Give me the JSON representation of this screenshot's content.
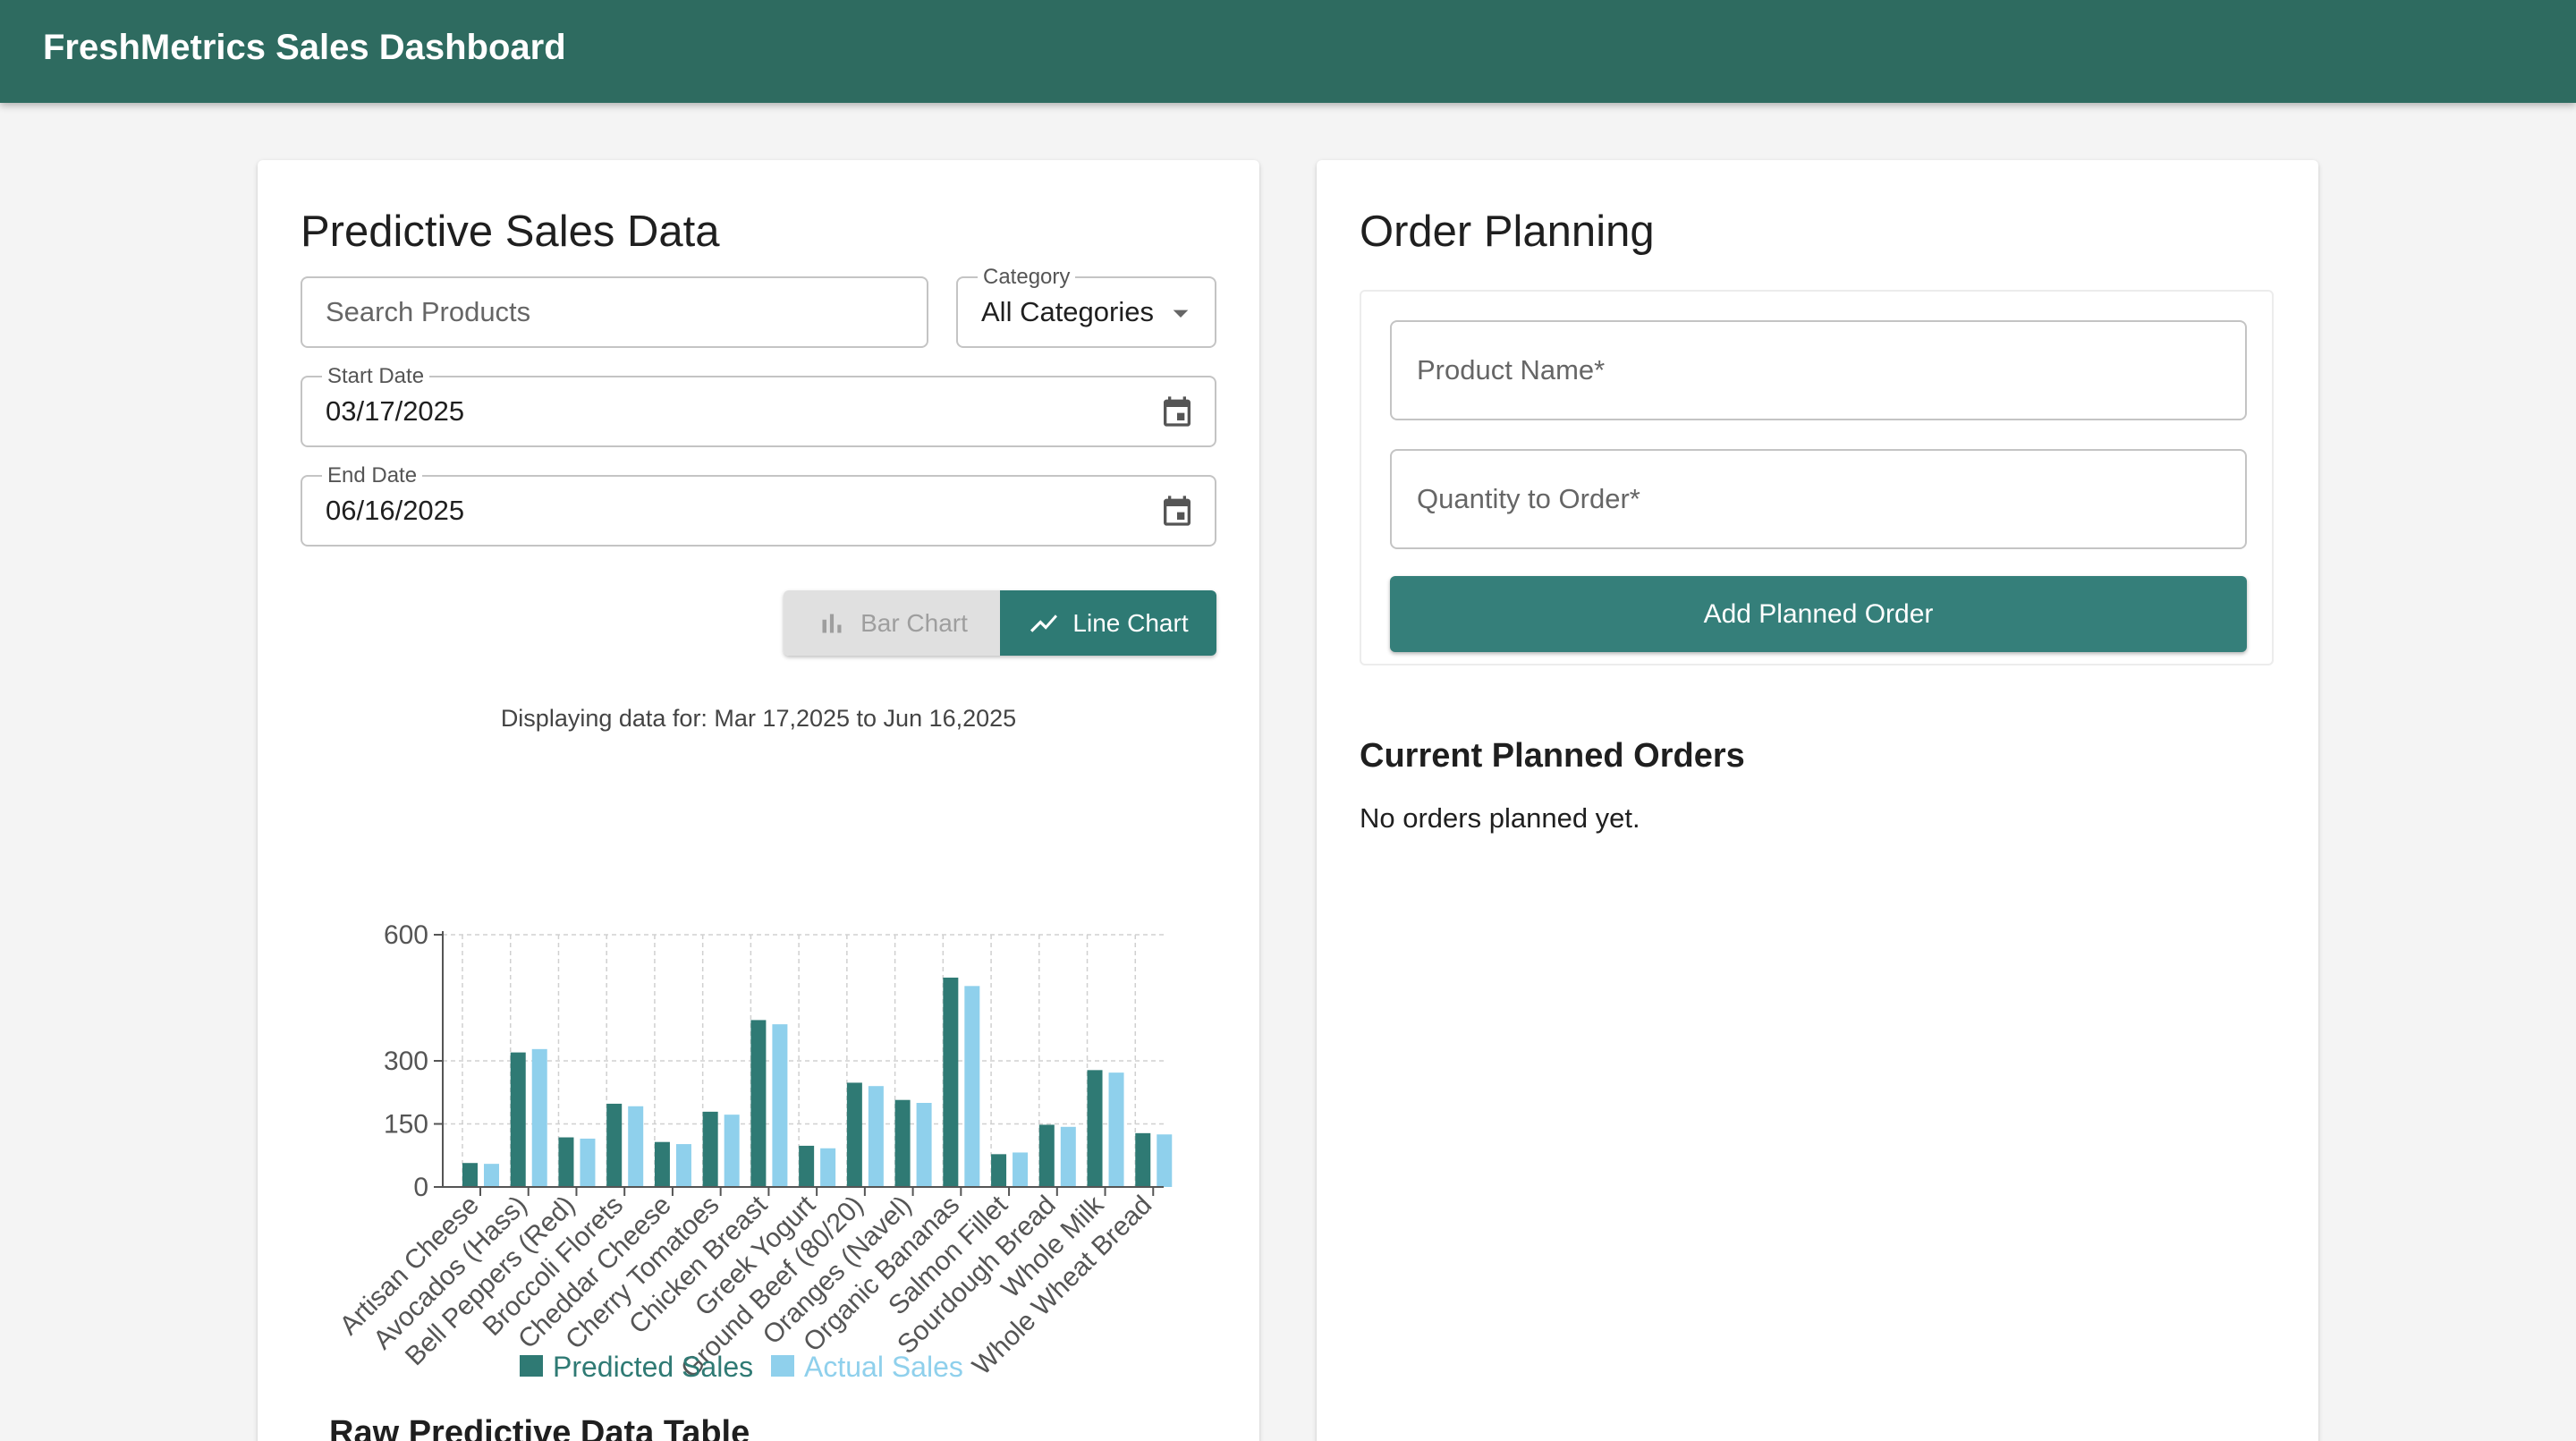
{
  "app": {
    "title": "FreshMetrics Sales Dashboard"
  },
  "colors": {
    "header": "#2e6b60",
    "predicted": "#2f7a74",
    "actual": "#8fd0ec",
    "primary_button": "#357f7a"
  },
  "predictive": {
    "title": "Predictive Sales Data",
    "search_placeholder": "Search Products",
    "category": {
      "label": "Category",
      "value": "All Categories"
    },
    "start_date": {
      "label": "Start Date",
      "value": "03/17/2025"
    },
    "end_date": {
      "label": "End Date",
      "value": "06/16/2025"
    },
    "toggle": {
      "bar_label": "Bar Chart",
      "line_label": "Line Chart",
      "selected": "Line Chart"
    },
    "caption": "Displaying data for: Mar 17,2025 to Jun 16,2025",
    "table_heading": "Raw Predictive Data Table"
  },
  "chart_data": {
    "type": "bar",
    "title": "",
    "xlabel": "",
    "ylabel": "",
    "ylim": [
      0,
      600
    ],
    "yticks": [
      "0",
      "150",
      "300",
      "600"
    ],
    "grid": true,
    "legend_position": "bottom",
    "categories": [
      "Artisan Cheese",
      "Avocados (Hass)",
      "Bell Peppers (Red)",
      "Broccoli Florets",
      "Cheddar Cheese",
      "Cherry Tomatoes",
      "Chicken Breast",
      "Greek Yogurt",
      "Ground Beef (80/20)",
      "Oranges (Navel)",
      "Organic Bananas",
      "Salmon Fillet",
      "Sourdough Bread",
      "Whole Milk",
      "Whole Wheat Bread"
    ],
    "series": [
      {
        "name": "Predicted Sales",
        "values": [
          57,
          320,
          118,
          198,
          107,
          179,
          397,
          98,
          248,
          207,
          498,
          78,
          148,
          278,
          128
        ]
      },
      {
        "name": "Actual Sales",
        "values": [
          55,
          328,
          115,
          192,
          102,
          172,
          387,
          92,
          240,
          200,
          478,
          82,
          143,
          272,
          125
        ]
      }
    ]
  },
  "order_planning": {
    "title": "Order Planning",
    "product_placeholder": "Product Name*",
    "quantity_placeholder": "Quantity to Order*",
    "add_button": "Add Planned Order",
    "current_heading": "Current Planned Orders",
    "empty_text": "No orders planned yet."
  }
}
